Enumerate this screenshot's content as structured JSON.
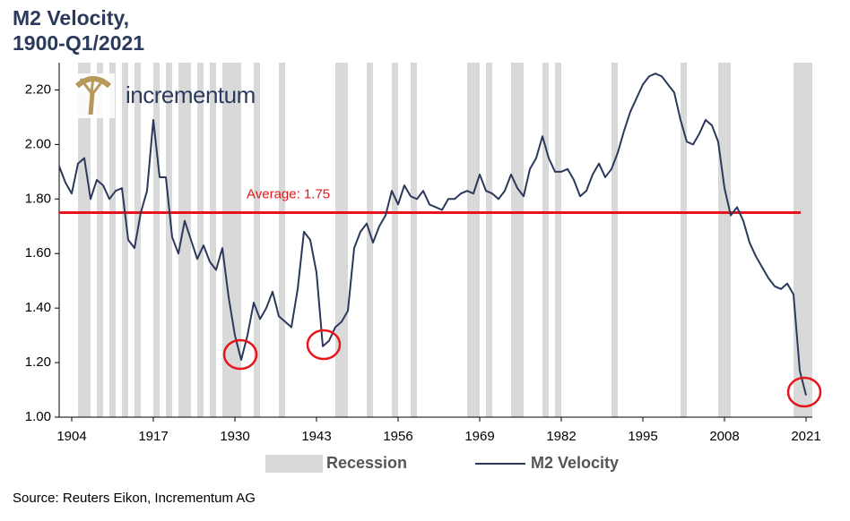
{
  "chart_data": {
    "type": "line",
    "title": [
      "M2 Velocity,",
      "1900-Q1/2021"
    ],
    "brand": "incrementum",
    "source": "Source: Reuters Eikon, Incrementum AG",
    "x": [
      1902,
      1903,
      1904,
      1905,
      1906,
      1907,
      1908,
      1909,
      1910,
      1911,
      1912,
      1913,
      1914,
      1915,
      1916,
      1917,
      1918,
      1919,
      1920,
      1921,
      1922,
      1923,
      1924,
      1925,
      1926,
      1927,
      1928,
      1929,
      1930,
      1931,
      1932,
      1933,
      1934,
      1935,
      1936,
      1937,
      1938,
      1939,
      1940,
      1941,
      1942,
      1943,
      1944,
      1945,
      1946,
      1947,
      1948,
      1949,
      1950,
      1951,
      1952,
      1953,
      1954,
      1955,
      1956,
      1957,
      1958,
      1959,
      1960,
      1961,
      1962,
      1963,
      1964,
      1965,
      1966,
      1967,
      1968,
      1969,
      1970,
      1971,
      1972,
      1973,
      1974,
      1975,
      1976,
      1977,
      1978,
      1979,
      1980,
      1981,
      1982,
      1983,
      1984,
      1985,
      1986,
      1987,
      1988,
      1989,
      1990,
      1991,
      1992,
      1993,
      1994,
      1995,
      1996,
      1997,
      1998,
      1999,
      2000,
      2001,
      2002,
      2003,
      2004,
      2005,
      2006,
      2007,
      2008,
      2009,
      2010,
      2011,
      2012,
      2013,
      2014,
      2015,
      2016,
      2017,
      2018,
      2019,
      2020,
      2021
    ],
    "series": [
      {
        "name": "M2 Velocity",
        "color": "#2b3a5c",
        "values": [
          1.92,
          1.86,
          1.82,
          1.93,
          1.95,
          1.8,
          1.87,
          1.85,
          1.8,
          1.83,
          1.84,
          1.65,
          1.62,
          1.75,
          1.83,
          2.09,
          1.88,
          1.88,
          1.66,
          1.6,
          1.72,
          1.65,
          1.58,
          1.63,
          1.57,
          1.54,
          1.62,
          1.44,
          1.3,
          1.21,
          1.3,
          1.42,
          1.36,
          1.4,
          1.46,
          1.37,
          1.35,
          1.33,
          1.47,
          1.68,
          1.65,
          1.53,
          1.26,
          1.28,
          1.33,
          1.35,
          1.39,
          1.62,
          1.68,
          1.71,
          1.64,
          1.7,
          1.74,
          1.83,
          1.78,
          1.85,
          1.81,
          1.8,
          1.83,
          1.78,
          1.77,
          1.76,
          1.8,
          1.8,
          1.82,
          1.83,
          1.82,
          1.89,
          1.83,
          1.82,
          1.8,
          1.83,
          1.89,
          1.84,
          1.81,
          1.91,
          1.95,
          2.03,
          1.95,
          1.9,
          1.9,
          1.91,
          1.87,
          1.81,
          1.83,
          1.89,
          1.93,
          1.88,
          1.91,
          1.97,
          2.05,
          2.12,
          2.17,
          2.22,
          2.25,
          2.26,
          2.25,
          2.22,
          2.19,
          2.09,
          2.01,
          2.0,
          2.04,
          2.09,
          2.07,
          2.01,
          1.84,
          1.74,
          1.77,
          1.72,
          1.64,
          1.59,
          1.55,
          1.51,
          1.48,
          1.47,
          1.49,
          1.45,
          1.17,
          1.08
        ]
      }
    ],
    "recession_name": "Recession",
    "recession_color": "#d9d9d9",
    "recessions": [
      [
        1905,
        1907
      ],
      [
        1908,
        1909
      ],
      [
        1910,
        1911
      ],
      [
        1912,
        1913
      ],
      [
        1914,
        1915
      ],
      [
        1917,
        1918
      ],
      [
        1919,
        1920
      ],
      [
        1921,
        1923
      ],
      [
        1924,
        1925
      ],
      [
        1926,
        1927
      ],
      [
        1928,
        1931
      ],
      [
        1933,
        1934
      ],
      [
        1937,
        1938
      ],
      [
        1946,
        1948
      ],
      [
        1951,
        1952
      ],
      [
        1955,
        1956
      ],
      [
        1958,
        1959
      ],
      [
        1967,
        1969
      ],
      [
        1970,
        1971
      ],
      [
        1974,
        1976
      ],
      [
        1979,
        1980
      ],
      [
        1981,
        1982
      ],
      [
        1990,
        1991
      ],
      [
        2001,
        2002
      ],
      [
        2007,
        2009
      ],
      [
        2019,
        2022
      ]
    ],
    "average": 1.75,
    "average_label": "Average: 1.75",
    "average_color": "#e8141b",
    "xlim": [
      1902,
      2022
    ],
    "ylim": [
      1.0,
      2.3
    ],
    "xticks": [
      1904,
      1917,
      1930,
      1943,
      1956,
      1969,
      1982,
      1995,
      2008,
      2021
    ],
    "yticks": [
      {
        "value": 1.0,
        "label": "1.00"
      },
      {
        "value": 1.2,
        "label": "1.20"
      },
      {
        "value": 1.4,
        "label": "1.40"
      },
      {
        "value": 1.6,
        "label": "1.60"
      },
      {
        "value": 1.8,
        "label": "1.80"
      },
      {
        "value": 2.0,
        "label": "2.00"
      },
      {
        "value": 2.2,
        "label": "2.20"
      }
    ],
    "grid": false
  }
}
